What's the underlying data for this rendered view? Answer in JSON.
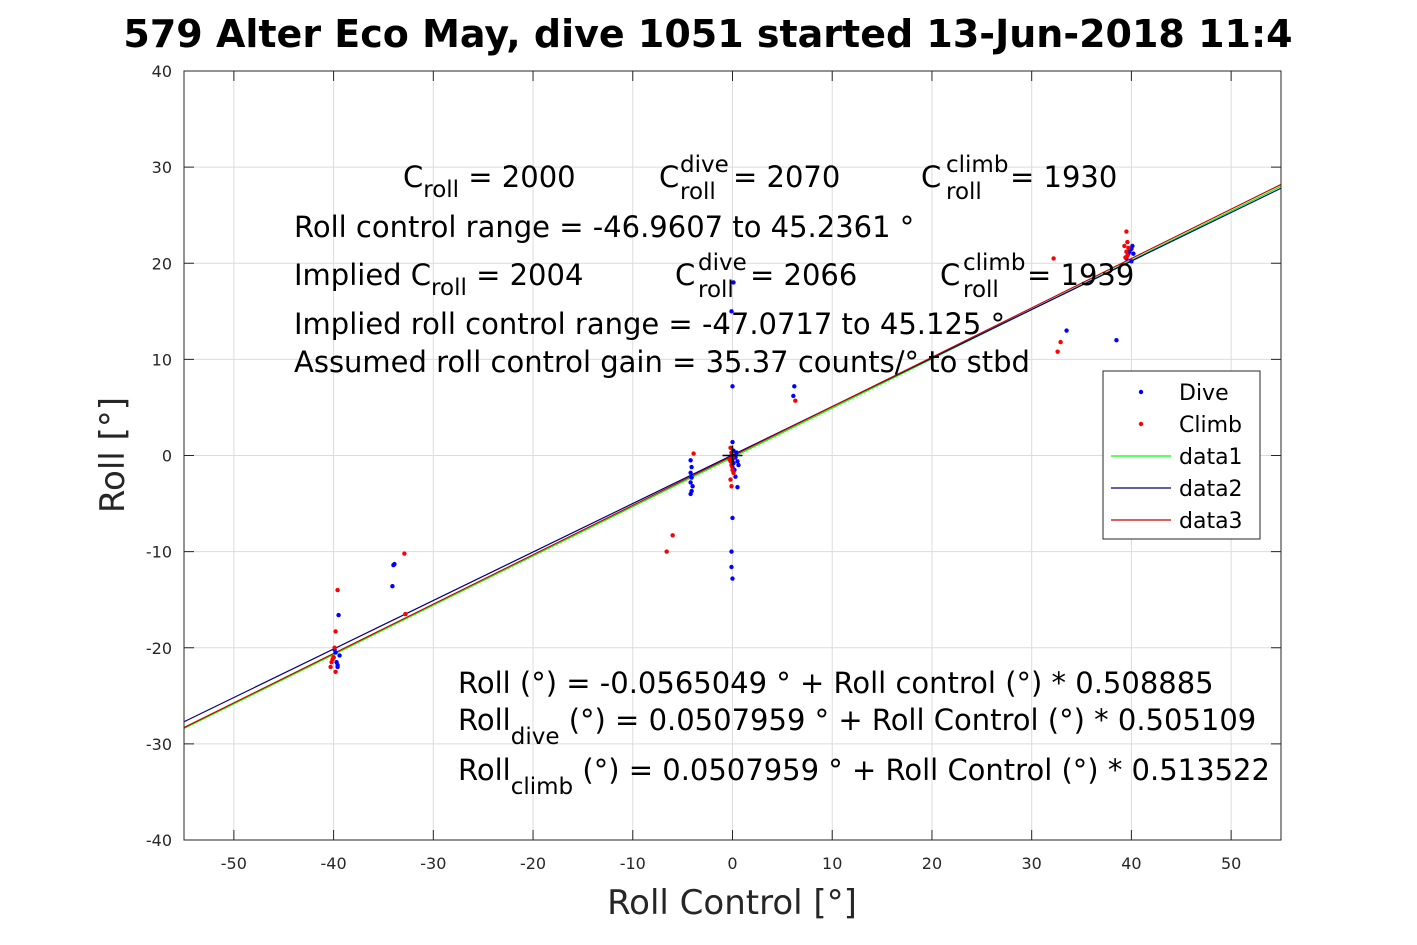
{
  "title": "579 Alter Eco May, dive 1051 started 13-Jun-2018 11:4",
  "chart_data": {
    "type": "scatter",
    "xlabel": "Roll Control [°]",
    "ylabel": "Roll [°]",
    "xlim": [
      -55,
      55
    ],
    "ylim": [
      -40,
      40
    ],
    "xticks": [
      -50,
      -40,
      -30,
      -20,
      -10,
      0,
      10,
      20,
      30,
      40,
      50
    ],
    "yticks": [
      -40,
      -30,
      -20,
      -10,
      0,
      10,
      20,
      30,
      40
    ],
    "grid": true,
    "legend_position": "right",
    "series": [
      {
        "name": "Dive",
        "kind": "points",
        "color": "#0000ff",
        "points": [
          [
            -40,
            -21
          ],
          [
            -39.8,
            -20.5
          ],
          [
            -39.7,
            -21.5
          ],
          [
            -39.6,
            -22
          ],
          [
            -39.9,
            -20.2
          ],
          [
            -39.5,
            -16.6
          ],
          [
            -39.4,
            -20.8
          ],
          [
            -39.6,
            -21.8
          ],
          [
            -34,
            -11.4
          ],
          [
            -33.9,
            -11.3
          ],
          [
            -34.1,
            -13.6
          ],
          [
            -4.2,
            -0.5
          ],
          [
            -4.1,
            -1.2
          ],
          [
            -4.2,
            -1.8
          ],
          [
            -4.1,
            -2.3
          ],
          [
            -4.2,
            -2.8
          ],
          [
            -4,
            -3.2
          ],
          [
            -4.1,
            -3.7
          ],
          [
            -4.2,
            -4
          ],
          [
            0,
            1.4
          ],
          [
            0.1,
            0.5
          ],
          [
            -0.1,
            0
          ],
          [
            0,
            -0.4
          ],
          [
            0.1,
            -0.8
          ],
          [
            0,
            -1.2
          ],
          [
            0.2,
            -1.5
          ],
          [
            0.3,
            -0.2
          ],
          [
            0.4,
            0.3
          ],
          [
            0.5,
            -0.6
          ],
          [
            0.6,
            -1
          ],
          [
            0.3,
            -2.2
          ],
          [
            0.5,
            -3.3
          ],
          [
            0,
            -6.5
          ],
          [
            -0.1,
            -10
          ],
          [
            -0.1,
            -11.6
          ],
          [
            0,
            -12.8
          ],
          [
            -0.1,
            15
          ],
          [
            0.1,
            18
          ],
          [
            0,
            7.2
          ],
          [
            6.2,
            7.2
          ],
          [
            6.1,
            6.2
          ],
          [
            33.5,
            13
          ],
          [
            38.5,
            12
          ],
          [
            39.5,
            20.5
          ],
          [
            39.7,
            21
          ],
          [
            39.8,
            21.2
          ],
          [
            40,
            21.5
          ],
          [
            40.1,
            21.8
          ],
          [
            40,
            20.2
          ],
          [
            40.2,
            21
          ]
        ]
      },
      {
        "name": "Climb",
        "kind": "points",
        "color": "#ff0000",
        "points": [
          [
            -40.2,
            -21.5
          ],
          [
            -40.3,
            -22
          ],
          [
            -40.1,
            -21.2
          ],
          [
            -39.8,
            -22.5
          ],
          [
            -39.6,
            -14
          ],
          [
            -39.8,
            -18.3
          ],
          [
            -39.9,
            -20
          ],
          [
            -40,
            -21
          ],
          [
            -32.9,
            -10.2
          ],
          [
            -32.8,
            -16.5
          ],
          [
            -6.6,
            -10
          ],
          [
            -6,
            -8.3
          ],
          [
            -3.9,
            0.2
          ],
          [
            -0.2,
            0.8
          ],
          [
            -0.1,
            0.3
          ],
          [
            0,
            -0.2
          ],
          [
            -0.2,
            -0.6
          ],
          [
            -0.1,
            -1
          ],
          [
            0,
            -1.5
          ],
          [
            -0.3,
            -0.4
          ],
          [
            -0.2,
            -2.5
          ],
          [
            -0.1,
            -3.2
          ],
          [
            0.1,
            -1.8
          ],
          [
            6.3,
            5.7
          ],
          [
            32.2,
            20.5
          ],
          [
            32.6,
            10.8
          ],
          [
            32.9,
            11.8
          ],
          [
            39.5,
            23.3
          ],
          [
            39.3,
            21.8
          ],
          [
            39.5,
            21.2
          ],
          [
            39.6,
            20.8
          ],
          [
            39.7,
            21.6
          ],
          [
            39.4,
            20.6
          ],
          [
            39.6,
            22.2
          ]
        ]
      },
      {
        "name": "data1",
        "kind": "line",
        "color": "#00ff00",
        "points": [
          [
            -55,
            -28.4
          ],
          [
            55,
            28.0
          ]
        ]
      },
      {
        "name": "data2",
        "kind": "line",
        "color": "#000080",
        "points": [
          [
            -55,
            -27.7
          ],
          [
            55,
            27.8
          ]
        ]
      },
      {
        "name": "data3",
        "kind": "line",
        "color": "#cc0000",
        "points": [
          [
            -55,
            -28.3
          ],
          [
            55,
            28.2
          ]
        ]
      }
    ],
    "center_marker": {
      "x": 0,
      "y": 0,
      "color": "#000000"
    }
  },
  "annotations": {
    "c_roll_base": "C",
    "c_roll_sub": "roll",
    "c_roll_value": " = 2000",
    "c_dive_base": "C",
    "c_dive_sup": "dive",
    "c_dive_sub": "roll",
    "c_dive_value": " = 2070",
    "c_climb_base": "C",
    "c_climb_sup": "climb",
    "c_climb_sub": "roll",
    "c_climb_value": " = 1930",
    "range_line": "Roll control range = -46.9607 to 45.2361 °",
    "implied_prefix": "Implied C",
    "implied_sub": "roll",
    "implied_value": " = 2004",
    "imp_dive_base": "C",
    "imp_dive_sup": "dive",
    "imp_dive_sub": "roll",
    "imp_dive_value": " = 2066",
    "imp_climb_base": "C",
    "imp_climb_sup": "climb",
    "imp_climb_sub": "roll",
    "imp_climb_value": " = 1939",
    "implied_range_line": "Implied roll control range = -47.0717 to 45.125 °",
    "gain_line": "Assumed roll control gain = 35.37 counts/° to stbd",
    "fit_line": "Roll (°) = -0.0565049 ° + Roll control (°) * 0.508885",
    "fit_dive_base": "Roll",
    "fit_dive_sub": "dive",
    "fit_dive_rest": " (°) = 0.0507959 ° + Roll Control (°) * 0.505109",
    "fit_climb_base": "Roll",
    "fit_climb_sub": "climb",
    "fit_climb_rest": " (°) = 0.0507959 ° + Roll Control (°) * 0.513522"
  }
}
